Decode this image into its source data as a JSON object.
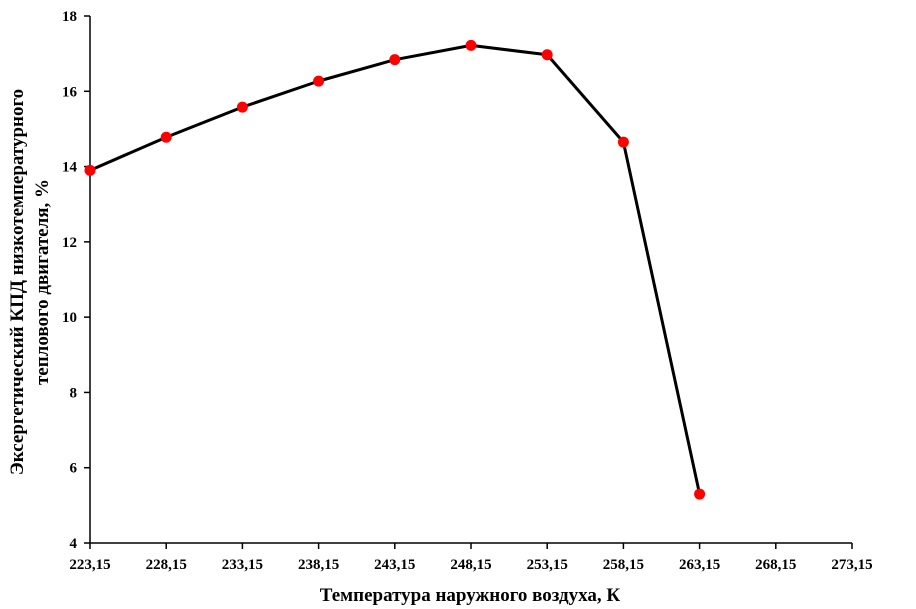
{
  "chart_data": {
    "type": "line",
    "xlabel": "Температура наружного воздуха, К",
    "ylabel_line1": "Эксергетический КПД низкотемпературного",
    "ylabel_line2": "теплового двигателя, %",
    "x_ticks": [
      "223,15",
      "228,15",
      "233,15",
      "238,15",
      "243,15",
      "248,15",
      "253,15",
      "258,15",
      "263,15",
      "268,15",
      "273,15"
    ],
    "y_ticks": [
      "4",
      "6",
      "8",
      "10",
      "12",
      "14",
      "16",
      "18"
    ],
    "xlim": [
      223.15,
      273.15
    ],
    "ylim": [
      4,
      18
    ],
    "grid": false,
    "series": [
      {
        "x": [
          223.15,
          228.15,
          233.15,
          238.15,
          243.15,
          248.15,
          253.15,
          258.15,
          263.15
        ],
        "y": [
          13.9,
          14.78,
          15.58,
          16.27,
          16.84,
          17.22,
          16.97,
          14.65,
          5.3
        ],
        "line_color": "#000000",
        "marker_color": "#ff0000"
      }
    ]
  }
}
